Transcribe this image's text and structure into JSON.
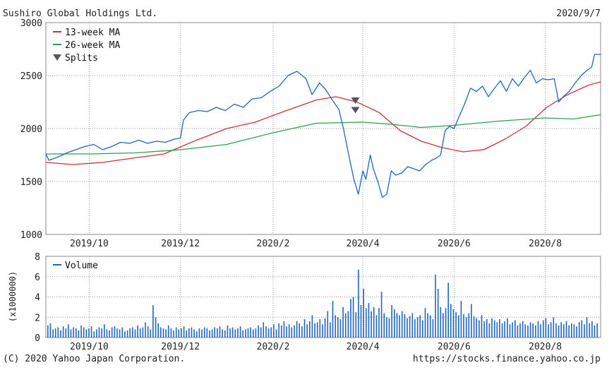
{
  "header": {
    "company": "Sushiro Global Holdings Ltd.",
    "date": "2020/9/7"
  },
  "footer": {
    "copyright": "(C) 2020 Yahoo Japan Corporation.",
    "url": "https://stocks.finance.yahoo.co.jp"
  },
  "colors": {
    "price": "#1f66c4",
    "ma13": "#cc3333",
    "ma26": "#2aa055",
    "volume": "#1f66c4",
    "grid": "#9a9a9a",
    "marker": "#555555"
  },
  "chart_data": [
    {
      "type": "line",
      "title": "Sushiro Global Holdings Ltd.",
      "x_ticks": [
        "2019/10",
        "2019/12",
        "2020/2",
        "2020/4",
        "2020/6",
        "2020/8"
      ],
      "x_tick_dates": [
        "2019-10-01",
        "2019-12-01",
        "2020-02-01",
        "2020-04-01",
        "2020-06-01",
        "2020-08-01"
      ],
      "x_range": [
        "2019-09-02",
        "2020-09-07"
      ],
      "y_ticks": [
        1000,
        1500,
        2000,
        2500,
        3000
      ],
      "ylim": [
        1000,
        3000
      ],
      "legend": [
        "13-week MA",
        "26-week MA",
        "Splits"
      ],
      "legend_position": "top-left",
      "grid": true,
      "series": [
        {
          "name": "Price",
          "points": [
            [
              "2019-09-02",
              1760
            ],
            [
              "2019-09-04",
              1700
            ],
            [
              "2019-09-10",
              1730
            ],
            [
              "2019-09-16",
              1770
            ],
            [
              "2019-09-22",
              1800
            ],
            [
              "2019-09-28",
              1830
            ],
            [
              "2019-10-04",
              1850
            ],
            [
              "2019-10-10",
              1800
            ],
            [
              "2019-10-16",
              1830
            ],
            [
              "2019-10-22",
              1870
            ],
            [
              "2019-10-28",
              1860
            ],
            [
              "2019-11-03",
              1890
            ],
            [
              "2019-11-09",
              1860
            ],
            [
              "2019-11-15",
              1880
            ],
            [
              "2019-11-21",
              1870
            ],
            [
              "2019-11-27",
              1900
            ],
            [
              "2019-12-01",
              1910
            ],
            [
              "2019-12-03",
              2080
            ],
            [
              "2019-12-07",
              2150
            ],
            [
              "2019-12-13",
              2170
            ],
            [
              "2019-12-19",
              2160
            ],
            [
              "2019-12-25",
              2200
            ],
            [
              "2019-12-31",
              2170
            ],
            [
              "2020-01-06",
              2230
            ],
            [
              "2020-01-12",
              2200
            ],
            [
              "2020-01-18",
              2280
            ],
            [
              "2020-01-24",
              2290
            ],
            [
              "2020-01-30",
              2350
            ],
            [
              "2020-02-05",
              2400
            ],
            [
              "2020-02-11",
              2500
            ],
            [
              "2020-02-17",
              2540
            ],
            [
              "2020-02-23",
              2470
            ],
            [
              "2020-02-27",
              2320
            ],
            [
              "2020-03-03",
              2430
            ],
            [
              "2020-03-07",
              2370
            ],
            [
              "2020-03-12",
              2260
            ],
            [
              "2020-03-16",
              2180
            ],
            [
              "2020-03-19",
              2000
            ],
            [
              "2020-03-23",
              1720
            ],
            [
              "2020-03-26",
              1520
            ],
            [
              "2020-03-29",
              1380
            ],
            [
              "2020-04-01",
              1600
            ],
            [
              "2020-04-03",
              1520
            ],
            [
              "2020-04-06",
              1750
            ],
            [
              "2020-04-08",
              1620
            ],
            [
              "2020-04-11",
              1500
            ],
            [
              "2020-04-14",
              1350
            ],
            [
              "2020-04-17",
              1380
            ],
            [
              "2020-04-20",
              1600
            ],
            [
              "2020-04-23",
              1560
            ],
            [
              "2020-04-27",
              1580
            ],
            [
              "2020-05-01",
              1640
            ],
            [
              "2020-05-05",
              1620
            ],
            [
              "2020-05-09",
              1600
            ],
            [
              "2020-05-13",
              1660
            ],
            [
              "2020-05-17",
              1700
            ],
            [
              "2020-05-20",
              1720
            ],
            [
              "2020-05-23",
              1750
            ],
            [
              "2020-05-26",
              1980
            ],
            [
              "2020-05-29",
              2020
            ],
            [
              "2020-06-01",
              2000
            ],
            [
              "2020-06-04",
              2100
            ],
            [
              "2020-06-08",
              2230
            ],
            [
              "2020-06-12",
              2380
            ],
            [
              "2020-06-16",
              2350
            ],
            [
              "2020-06-20",
              2400
            ],
            [
              "2020-06-24",
              2300
            ],
            [
              "2020-06-28",
              2380
            ],
            [
              "2020-07-02",
              2450
            ],
            [
              "2020-07-06",
              2350
            ],
            [
              "2020-07-10",
              2470
            ],
            [
              "2020-07-14",
              2400
            ],
            [
              "2020-07-18",
              2480
            ],
            [
              "2020-07-22",
              2550
            ],
            [
              "2020-07-26",
              2430
            ],
            [
              "2020-07-30",
              2470
            ],
            [
              "2020-08-03",
              2460
            ],
            [
              "2020-08-07",
              2470
            ],
            [
              "2020-08-10",
              2250
            ],
            [
              "2020-08-13",
              2300
            ],
            [
              "2020-08-17",
              2350
            ],
            [
              "2020-08-21",
              2430
            ],
            [
              "2020-08-25",
              2500
            ],
            [
              "2020-08-29",
              2550
            ],
            [
              "2020-09-01",
              2580
            ],
            [
              "2020-09-03",
              2700
            ],
            [
              "2020-09-07",
              2700
            ]
          ]
        },
        {
          "name": "13-week MA",
          "points": [
            [
              "2019-09-02",
              1680
            ],
            [
              "2019-09-20",
              1660
            ],
            [
              "2019-10-10",
              1680
            ],
            [
              "2019-10-30",
              1720
            ],
            [
              "2019-11-20",
              1760
            ],
            [
              "2019-12-10",
              1880
            ],
            [
              "2020-01-01",
              2000
            ],
            [
              "2020-01-20",
              2060
            ],
            [
              "2020-02-10",
              2170
            ],
            [
              "2020-03-01",
              2270
            ],
            [
              "2020-03-14",
              2300
            ],
            [
              "2020-03-28",
              2250
            ],
            [
              "2020-04-12",
              2150
            ],
            [
              "2020-04-26",
              1980
            ],
            [
              "2020-05-10",
              1880
            ],
            [
              "2020-05-24",
              1820
            ],
            [
              "2020-06-07",
              1780
            ],
            [
              "2020-06-21",
              1800
            ],
            [
              "2020-07-05",
              1900
            ],
            [
              "2020-07-19",
              2020
            ],
            [
              "2020-08-02",
              2200
            ],
            [
              "2020-08-16",
              2320
            ],
            [
              "2020-08-30",
              2410
            ],
            [
              "2020-09-07",
              2440
            ]
          ]
        },
        {
          "name": "26-week MA",
          "points": [
            [
              "2019-09-02",
              1760
            ],
            [
              "2019-10-01",
              1760
            ],
            [
              "2019-11-01",
              1770
            ],
            [
              "2019-12-01",
              1800
            ],
            [
              "2020-01-01",
              1850
            ],
            [
              "2020-02-01",
              1960
            ],
            [
              "2020-03-01",
              2050
            ],
            [
              "2020-04-01",
              2060
            ],
            [
              "2020-04-20",
              2040
            ],
            [
              "2020-05-10",
              2010
            ],
            [
              "2020-06-01",
              2030
            ],
            [
              "2020-07-01",
              2070
            ],
            [
              "2020-08-01",
              2100
            ],
            [
              "2020-08-20",
              2090
            ],
            [
              "2020-09-07",
              2130
            ]
          ]
        }
      ],
      "splits": [
        {
          "date": "2020-03-27",
          "y": 2260
        },
        {
          "date": "2020-03-27",
          "y": 2170
        }
      ]
    },
    {
      "type": "bar",
      "series_name": "Volume",
      "ylabel": "(x1000000)",
      "y_ticks": [
        0,
        2,
        4,
        6,
        8
      ],
      "ylim": [
        0,
        8
      ],
      "x_ticks": [
        "2019/10",
        "2019/12",
        "2020/2",
        "2020/4",
        "2020/6",
        "2020/8"
      ],
      "x_tick_dates": [
        "2019-10-01",
        "2019-12-01",
        "2020-02-01",
        "2020-04-01",
        "2020-06-01",
        "2020-08-01"
      ],
      "x_range": [
        "2019-09-02",
        "2020-09-07"
      ],
      "legend": [
        "Volume"
      ],
      "legend_position": "top-left",
      "grid": true,
      "values": [
        1.2,
        1.4,
        0.8,
        0.9,
        1.0,
        0.7,
        1.1,
        0.9,
        1.3,
        0.8,
        1.0,
        0.9,
        0.7,
        1.2,
        1.0,
        0.8,
        0.9,
        1.1,
        0.6,
        0.8,
        1.0,
        0.9,
        1.3,
        0.8,
        0.7,
        1.0,
        1.1,
        0.9,
        0.8,
        1.0,
        0.6,
        0.7,
        0.9,
        1.0,
        0.8,
        1.2,
        0.9,
        1.0,
        1.5,
        1.1,
        0.8,
        3.2,
        2.0,
        1.4,
        1.0,
        0.9,
        0.8,
        1.2,
        0.9,
        0.7,
        1.0,
        0.8,
        0.9,
        1.1,
        0.7,
        0.9,
        1.0,
        0.8,
        0.6,
        0.9,
        0.8,
        1.0,
        0.9,
        0.7,
        0.8,
        1.0,
        0.9,
        1.1,
        0.8,
        0.7,
        1.2,
        0.9,
        1.0,
        0.8,
        0.9,
        1.1,
        0.7,
        0.8,
        0.9,
        1.0,
        0.8,
        0.9,
        1.2,
        1.0,
        1.5,
        1.1,
        0.9,
        1.0,
        1.3,
        0.8,
        1.4,
        1.2,
        1.6,
        1.1,
        1.3,
        1.0,
        1.2,
        1.6,
        1.4,
        1.1,
        1.8,
        1.3,
        1.6,
        2.2,
        1.4,
        1.5,
        1.8,
        1.3,
        1.9,
        2.6,
        1.5,
        3.6,
        2.2,
        2.0,
        1.8,
        3.0,
        2.4,
        2.6,
        3.8,
        4.0,
        2.5,
        6.7,
        3.2,
        4.8,
        2.9,
        3.4,
        2.6,
        3.0,
        2.2,
        2.9,
        4.5,
        2.4,
        2.0,
        1.9,
        3.2,
        2.8,
        2.4,
        2.2,
        2.6,
        2.3,
        1.9,
        2.1,
        2.4,
        1.8,
        2.0,
        2.2,
        1.7,
        2.9,
        2.4,
        2.2,
        1.8,
        6.2,
        4.8,
        3.0,
        2.4,
        2.9,
        5.4,
        3.3,
        2.8,
        2.5,
        2.2,
        3.6,
        2.3,
        2.0,
        2.4,
        3.3,
        2.1,
        1.9,
        1.7,
        2.2,
        1.6,
        1.8,
        1.4,
        1.9,
        1.7,
        1.5,
        1.8,
        1.4,
        1.6,
        1.9,
        1.3,
        1.5,
        1.7,
        1.2,
        1.4,
        1.6,
        1.3,
        1.2,
        1.5,
        1.4,
        1.2,
        1.6,
        1.3,
        1.7,
        1.9,
        1.3,
        1.5,
        2.0,
        1.4,
        1.2,
        1.5,
        1.3,
        1.6,
        1.2,
        1.4,
        1.3,
        1.1,
        1.5,
        1.7,
        1.3,
        2.0,
        1.4,
        1.6,
        1.2,
        1.4
      ]
    }
  ]
}
